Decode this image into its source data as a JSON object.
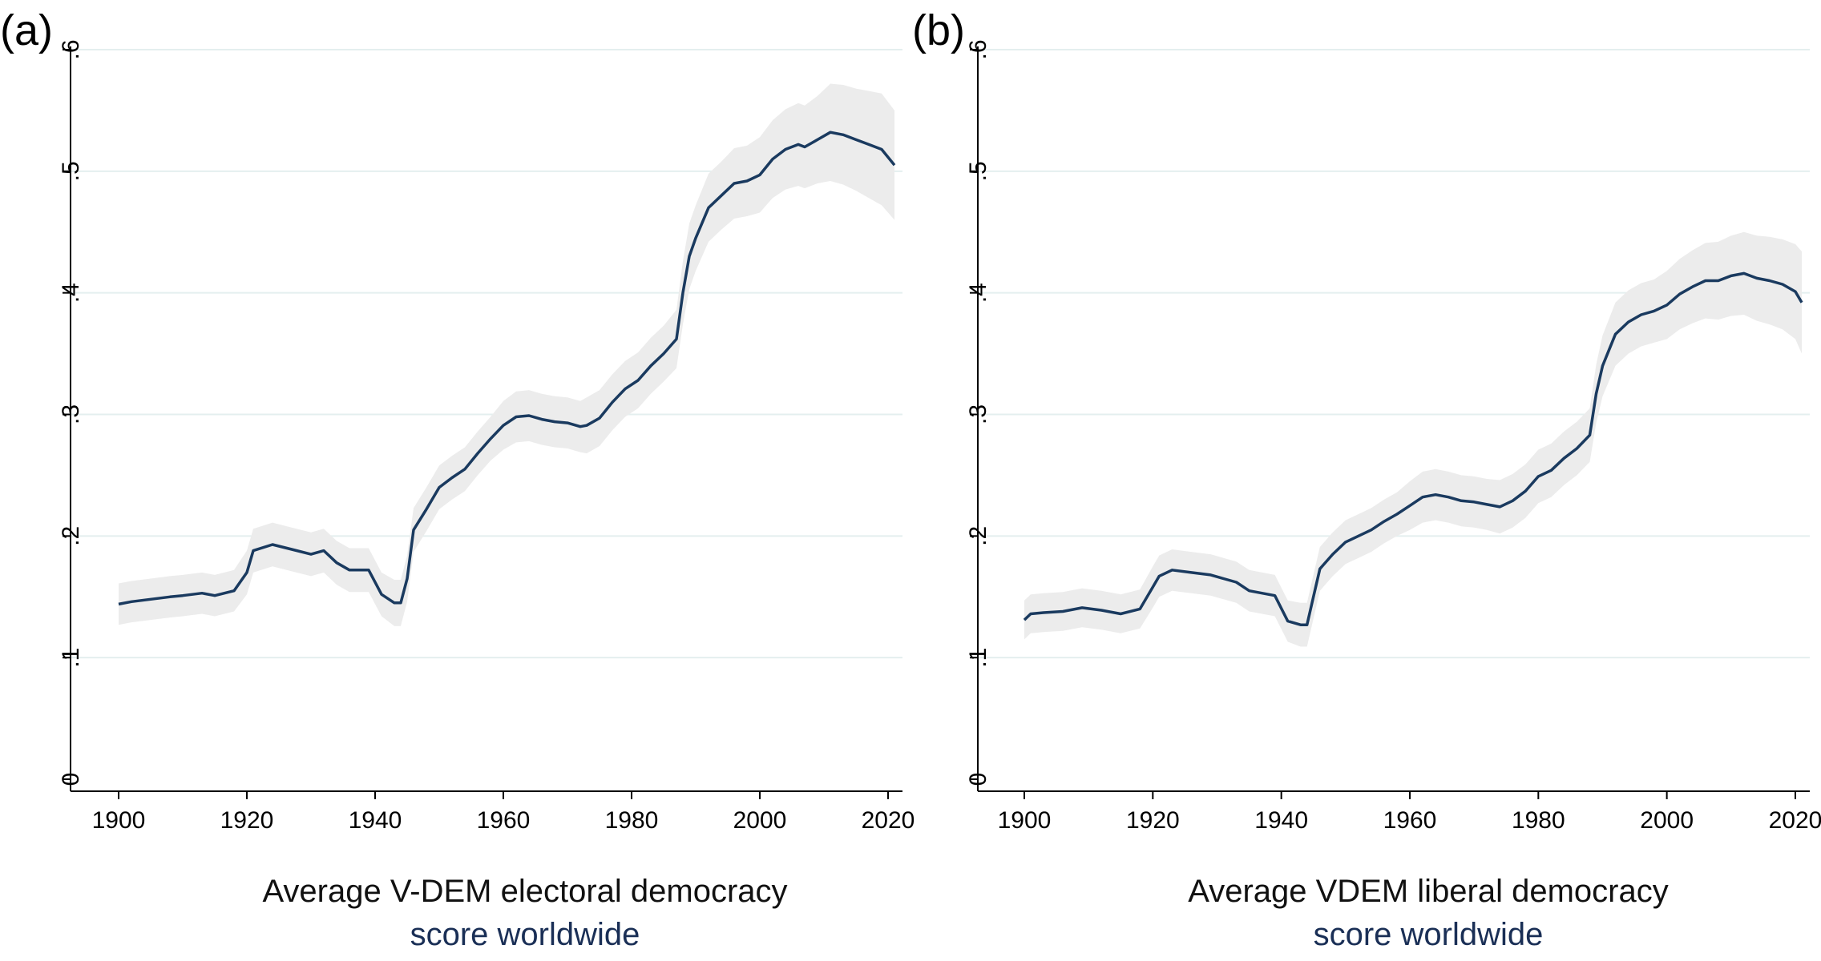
{
  "chart_data": [
    {
      "panel_label": "(a)",
      "type": "line",
      "title_line1": "Average V-DEM electoral democracy",
      "title_line2": "score worldwide",
      "xlabel": "",
      "ylabel": "",
      "xlim": [
        1900,
        2021
      ],
      "ylim": [
        0,
        0.6
      ],
      "x_ticks": [
        "1900",
        "1920",
        "1940",
        "1960",
        "1980",
        "2000",
        "2020"
      ],
      "y_ticks": [
        "0",
        ".1",
        ".2",
        ".3",
        ".4",
        ".5",
        ".6"
      ],
      "grid": true,
      "line_color": "#1a3a5f",
      "band_color": "#ececec",
      "series": [
        {
          "x": [
            1900,
            1902,
            1905,
            1908,
            1910,
            1913,
            1915,
            1918,
            1920,
            1921,
            1924,
            1927,
            1930,
            1932,
            1934,
            1936,
            1939,
            1941,
            1943,
            1944,
            1945,
            1946,
            1948,
            1950,
            1952,
            1954,
            1956,
            1958,
            1960,
            1962,
            1964,
            1966,
            1968,
            1970,
            1972,
            1973,
            1975,
            1977,
            1979,
            1981,
            1983,
            1985,
            1987,
            1988,
            1989,
            1990,
            1992,
            1994,
            1996,
            1998,
            2000,
            2002,
            2004,
            2006,
            2007,
            2009,
            2011,
            2013,
            2015,
            2017,
            2019,
            2021
          ],
          "y": [
            0.144,
            0.146,
            0.148,
            0.15,
            0.151,
            0.153,
            0.151,
            0.155,
            0.17,
            0.188,
            0.193,
            0.189,
            0.185,
            0.188,
            0.178,
            0.172,
            0.172,
            0.152,
            0.145,
            0.145,
            0.165,
            0.205,
            0.222,
            0.24,
            0.248,
            0.255,
            0.268,
            0.28,
            0.291,
            0.298,
            0.299,
            0.296,
            0.294,
            0.293,
            0.29,
            0.291,
            0.297,
            0.31,
            0.321,
            0.328,
            0.34,
            0.35,
            0.362,
            0.4,
            0.43,
            0.445,
            0.47,
            0.48,
            0.49,
            0.492,
            0.497,
            0.51,
            0.518,
            0.522,
            0.52,
            0.526,
            0.532,
            0.53,
            0.526,
            0.522,
            0.518,
            0.505
          ],
          "lower": [
            0.127,
            0.129,
            0.131,
            0.133,
            0.134,
            0.136,
            0.134,
            0.138,
            0.152,
            0.17,
            0.175,
            0.171,
            0.167,
            0.17,
            0.16,
            0.154,
            0.154,
            0.134,
            0.126,
            0.126,
            0.146,
            0.187,
            0.204,
            0.222,
            0.23,
            0.237,
            0.25,
            0.262,
            0.271,
            0.277,
            0.278,
            0.275,
            0.273,
            0.272,
            0.269,
            0.268,
            0.274,
            0.287,
            0.298,
            0.305,
            0.317,
            0.327,
            0.338,
            0.374,
            0.403,
            0.418,
            0.442,
            0.452,
            0.461,
            0.463,
            0.466,
            0.478,
            0.485,
            0.488,
            0.486,
            0.49,
            0.492,
            0.489,
            0.484,
            0.478,
            0.472,
            0.46
          ],
          "upper": [
            0.161,
            0.163,
            0.165,
            0.167,
            0.168,
            0.17,
            0.168,
            0.172,
            0.188,
            0.206,
            0.211,
            0.207,
            0.203,
            0.206,
            0.196,
            0.19,
            0.19,
            0.17,
            0.164,
            0.164,
            0.184,
            0.223,
            0.24,
            0.258,
            0.266,
            0.273,
            0.286,
            0.298,
            0.311,
            0.319,
            0.32,
            0.317,
            0.315,
            0.314,
            0.311,
            0.314,
            0.32,
            0.333,
            0.344,
            0.351,
            0.363,
            0.373,
            0.386,
            0.426,
            0.457,
            0.472,
            0.498,
            0.508,
            0.519,
            0.521,
            0.528,
            0.542,
            0.551,
            0.556,
            0.554,
            0.562,
            0.572,
            0.571,
            0.568,
            0.566,
            0.564,
            0.55
          ]
        }
      ]
    },
    {
      "panel_label": "(b)",
      "type": "line",
      "title_line1": "Average VDEM liberal democracy",
      "title_line2": "score worldwide",
      "xlabel": "",
      "ylabel": "",
      "xlim": [
        1900,
        2021
      ],
      "ylim": [
        0,
        0.6
      ],
      "x_ticks": [
        "1900",
        "1920",
        "1940",
        "1960",
        "1980",
        "2000",
        "2020"
      ],
      "y_ticks": [
        "0",
        ".1",
        ".2",
        ".3",
        ".4",
        ".5",
        ".6"
      ],
      "grid": true,
      "line_color": "#1a3a5f",
      "band_color": "#ececec",
      "series": [
        {
          "x": [
            1900,
            1901,
            1903,
            1906,
            1909,
            1912,
            1915,
            1918,
            1920,
            1921,
            1923,
            1926,
            1929,
            1931,
            1933,
            1935,
            1939,
            1941,
            1943,
            1944,
            1945,
            1946,
            1948,
            1950,
            1952,
            1954,
            1956,
            1958,
            1960,
            1962,
            1964,
            1966,
            1968,
            1970,
            1972,
            1974,
            1976,
            1978,
            1980,
            1982,
            1984,
            1986,
            1988,
            1989,
            1990,
            1992,
            1994,
            1996,
            1998,
            2000,
            2002,
            2004,
            2006,
            2008,
            2010,
            2012,
            2014,
            2016,
            2018,
            2020,
            2021
          ],
          "y": [
            0.131,
            0.136,
            0.137,
            0.138,
            0.141,
            0.139,
            0.136,
            0.14,
            0.158,
            0.167,
            0.172,
            0.17,
            0.168,
            0.165,
            0.162,
            0.155,
            0.151,
            0.13,
            0.127,
            0.127,
            0.15,
            0.173,
            0.185,
            0.195,
            0.2,
            0.205,
            0.212,
            0.218,
            0.225,
            0.232,
            0.234,
            0.232,
            0.229,
            0.228,
            0.226,
            0.224,
            0.229,
            0.237,
            0.249,
            0.254,
            0.264,
            0.272,
            0.283,
            0.317,
            0.34,
            0.366,
            0.376,
            0.382,
            0.385,
            0.39,
            0.399,
            0.405,
            0.41,
            0.41,
            0.414,
            0.416,
            0.412,
            0.41,
            0.407,
            0.401,
            0.392
          ],
          "lower": [
            0.115,
            0.12,
            0.121,
            0.122,
            0.125,
            0.123,
            0.12,
            0.124,
            0.141,
            0.15,
            0.155,
            0.153,
            0.151,
            0.148,
            0.145,
            0.138,
            0.134,
            0.113,
            0.109,
            0.109,
            0.132,
            0.155,
            0.167,
            0.177,
            0.182,
            0.187,
            0.194,
            0.2,
            0.205,
            0.211,
            0.213,
            0.211,
            0.208,
            0.207,
            0.205,
            0.202,
            0.207,
            0.215,
            0.227,
            0.232,
            0.242,
            0.25,
            0.261,
            0.293,
            0.315,
            0.34,
            0.35,
            0.356,
            0.359,
            0.362,
            0.37,
            0.375,
            0.379,
            0.378,
            0.381,
            0.382,
            0.377,
            0.374,
            0.37,
            0.362,
            0.35
          ],
          "upper": [
            0.147,
            0.152,
            0.153,
            0.154,
            0.157,
            0.155,
            0.152,
            0.156,
            0.175,
            0.184,
            0.189,
            0.187,
            0.185,
            0.182,
            0.179,
            0.172,
            0.168,
            0.147,
            0.145,
            0.145,
            0.168,
            0.191,
            0.203,
            0.213,
            0.218,
            0.223,
            0.23,
            0.236,
            0.245,
            0.253,
            0.255,
            0.253,
            0.25,
            0.249,
            0.247,
            0.246,
            0.251,
            0.259,
            0.271,
            0.276,
            0.286,
            0.294,
            0.305,
            0.341,
            0.365,
            0.392,
            0.402,
            0.408,
            0.411,
            0.418,
            0.428,
            0.435,
            0.441,
            0.442,
            0.447,
            0.45,
            0.447,
            0.446,
            0.444,
            0.44,
            0.434
          ]
        }
      ]
    }
  ]
}
